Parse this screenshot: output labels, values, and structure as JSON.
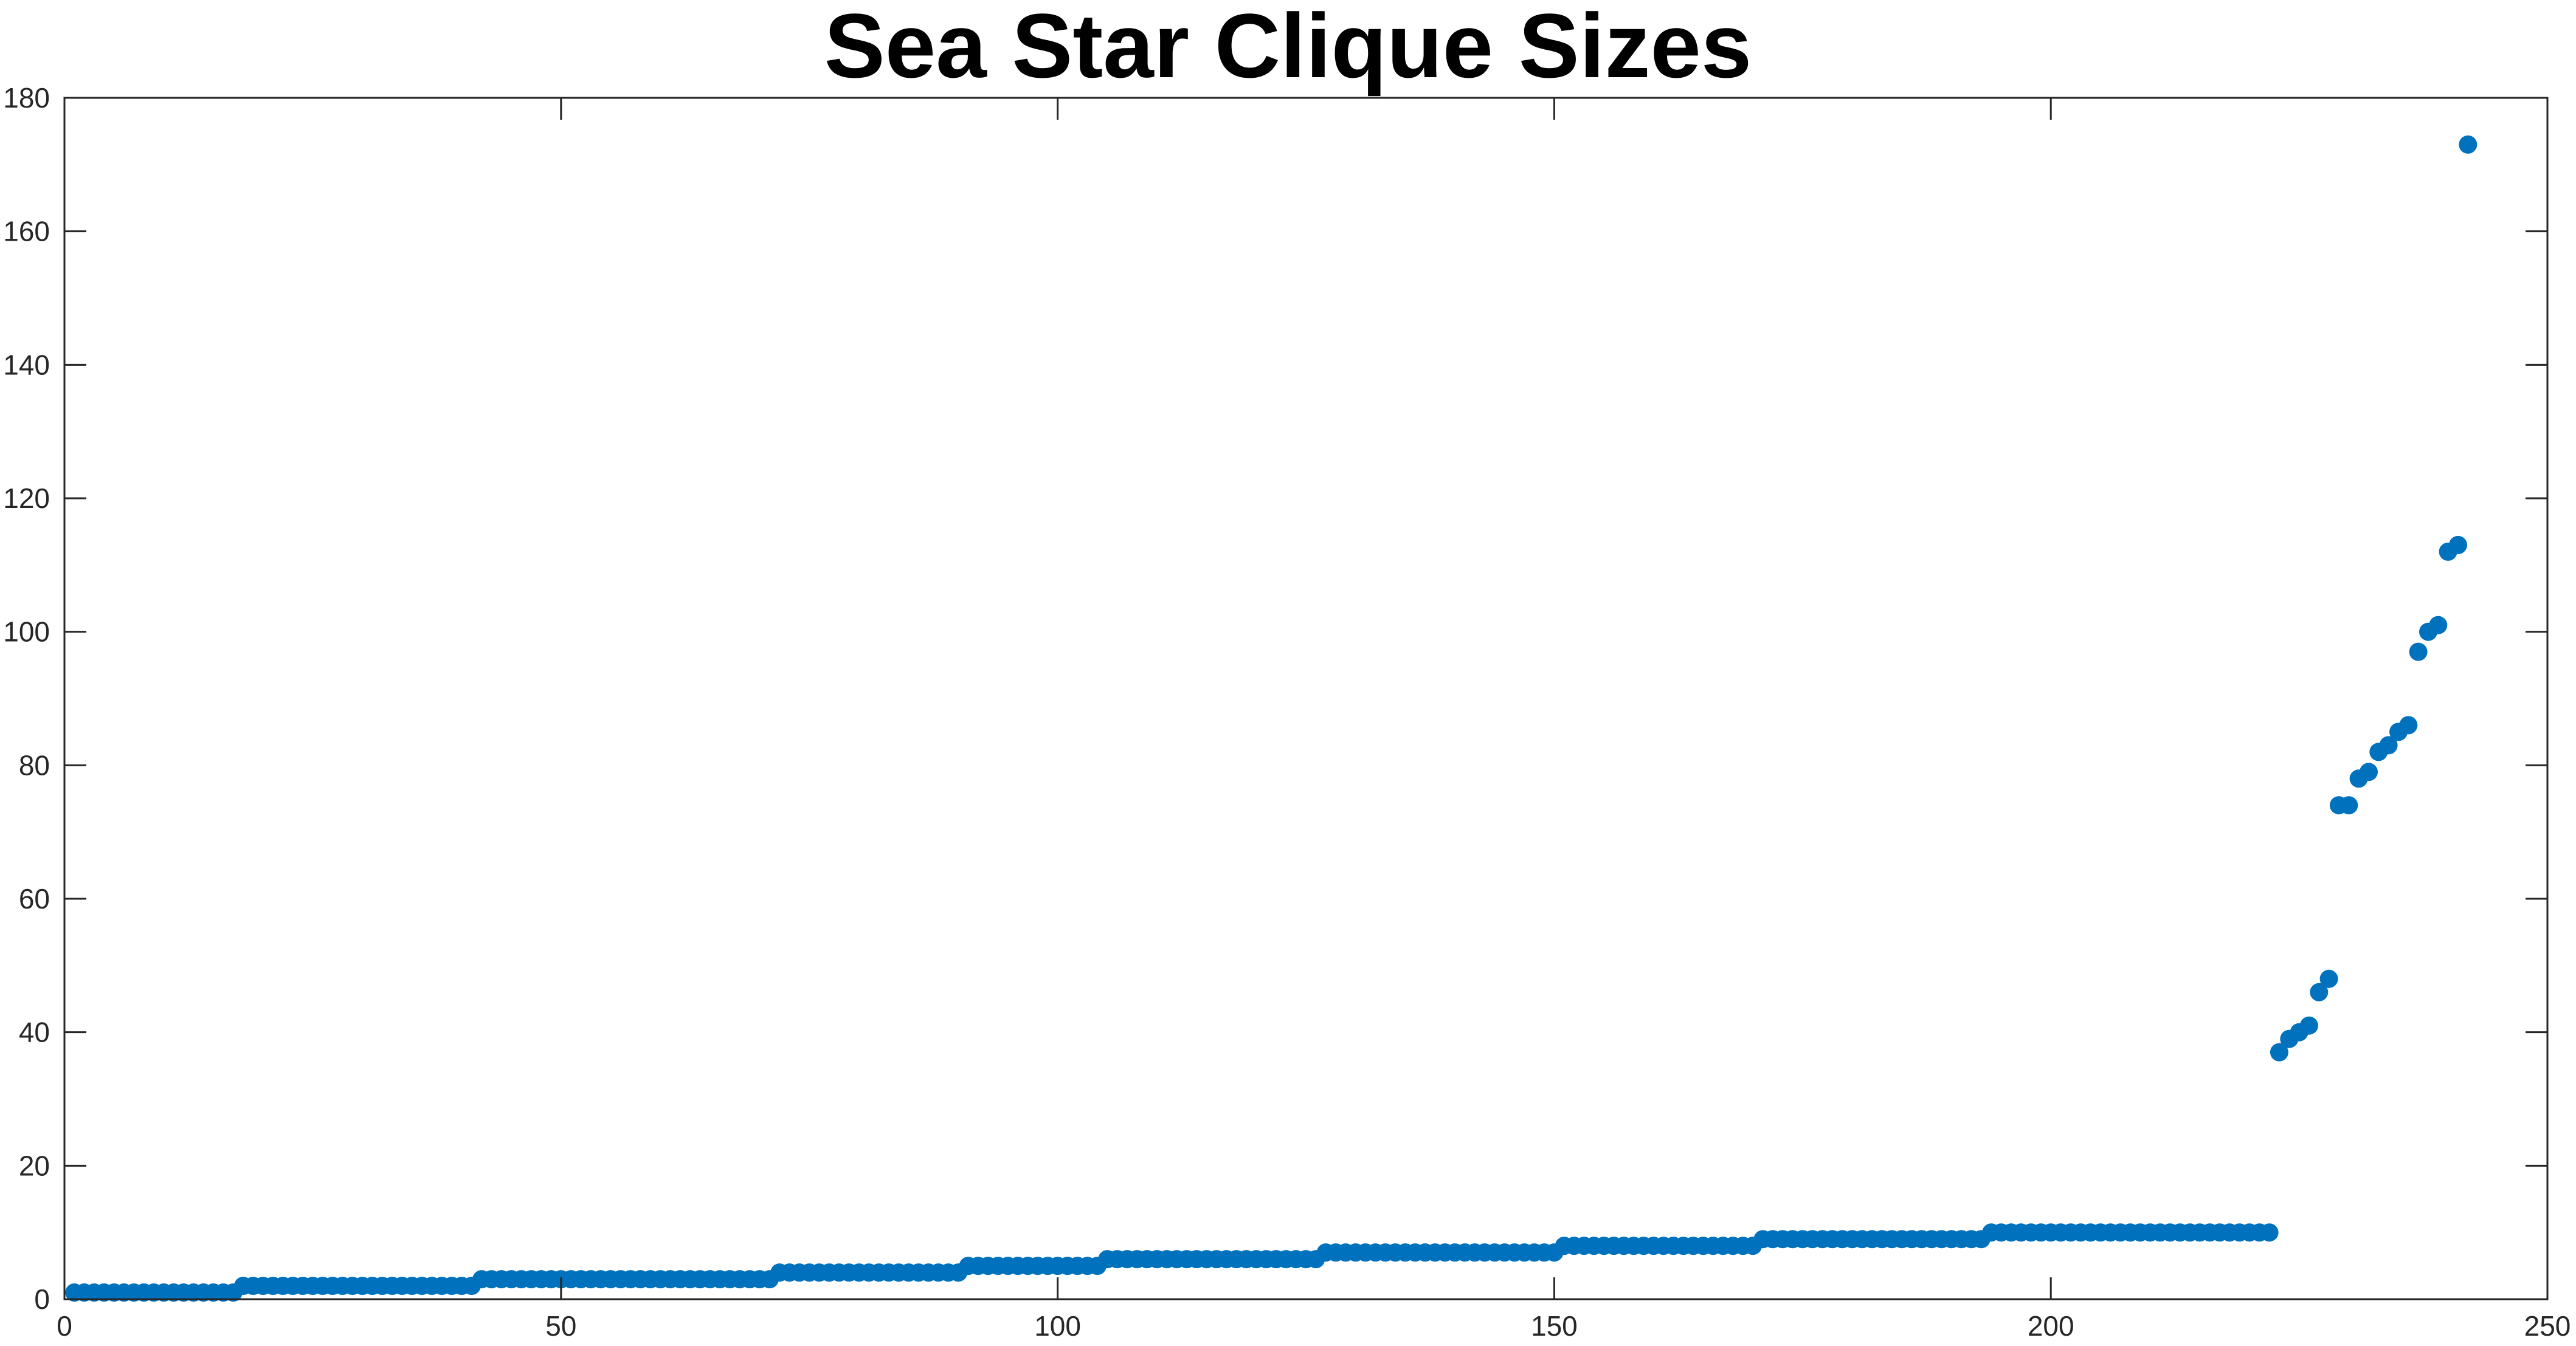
{
  "chart_data": {
    "type": "scatter",
    "title": "Sea Star Clique Sizes",
    "xlabel": "",
    "ylabel": "",
    "xlim": [
      0,
      250
    ],
    "ylim": [
      0,
      180
    ],
    "xticks": [
      0,
      50,
      100,
      150,
      200,
      250
    ],
    "yticks": [
      0,
      20,
      40,
      60,
      80,
      100,
      120,
      140,
      160,
      180
    ],
    "grid": false,
    "legend": "none",
    "marker_color": "#0072BD",
    "series": [
      {
        "name": "",
        "x": [
          1,
          2,
          3,
          4,
          5,
          6,
          7,
          8,
          9,
          10,
          11,
          12,
          13,
          14,
          15,
          16,
          17,
          18,
          19,
          20,
          21,
          22,
          23,
          24,
          25,
          26,
          27,
          28,
          29,
          30,
          31,
          32,
          33,
          34,
          35,
          36,
          37,
          38,
          39,
          40,
          41,
          42,
          43,
          44,
          45,
          46,
          47,
          48,
          49,
          50,
          51,
          52,
          53,
          54,
          55,
          56,
          57,
          58,
          59,
          60,
          61,
          62,
          63,
          64,
          65,
          66,
          67,
          68,
          69,
          70,
          71,
          72,
          73,
          74,
          75,
          76,
          77,
          78,
          79,
          80,
          81,
          82,
          83,
          84,
          85,
          86,
          87,
          88,
          89,
          90,
          91,
          92,
          93,
          94,
          95,
          96,
          97,
          98,
          99,
          100,
          101,
          102,
          103,
          104,
          105,
          106,
          107,
          108,
          109,
          110,
          111,
          112,
          113,
          114,
          115,
          116,
          117,
          118,
          119,
          120,
          121,
          122,
          123,
          124,
          125,
          126,
          127,
          128,
          129,
          130,
          131,
          132,
          133,
          134,
          135,
          136,
          137,
          138,
          139,
          140,
          141,
          142,
          143,
          144,
          145,
          146,
          147,
          148,
          149,
          150,
          151,
          152,
          153,
          154,
          155,
          156,
          157,
          158,
          159,
          160,
          161,
          162,
          163,
          164,
          165,
          166,
          167,
          168,
          169,
          170,
          171,
          172,
          173,
          174,
          175,
          176,
          177,
          178,
          179,
          180,
          181,
          182,
          183,
          184,
          185,
          186,
          187,
          188,
          189,
          190,
          191,
          192,
          193,
          194,
          195,
          196,
          197,
          198,
          199,
          200,
          201,
          202,
          203,
          204,
          205,
          206,
          207,
          208,
          209,
          210,
          211,
          212,
          213,
          214,
          215,
          216,
          217,
          218,
          219,
          220,
          221,
          222,
          223,
          224,
          225,
          226,
          227,
          228,
          229,
          230,
          231,
          232,
          233,
          234,
          235,
          236,
          237,
          238,
          239,
          240,
          241,
          242
        ],
        "y": [
          1,
          1,
          1,
          1,
          1,
          1,
          1,
          1,
          1,
          1,
          1,
          1,
          1,
          1,
          1,
          1,
          1,
          2,
          2,
          2,
          2,
          2,
          2,
          2,
          2,
          2,
          2,
          2,
          2,
          2,
          2,
          2,
          2,
          2,
          2,
          2,
          2,
          2,
          2,
          2,
          2,
          3,
          3,
          3,
          3,
          3,
          3,
          3,
          3,
          3,
          3,
          3,
          3,
          3,
          3,
          3,
          3,
          3,
          3,
          3,
          3,
          3,
          3,
          3,
          3,
          3,
          3,
          3,
          3,
          3,
          3,
          4,
          4,
          4,
          4,
          4,
          4,
          4,
          4,
          4,
          4,
          4,
          4,
          4,
          4,
          4,
          4,
          4,
          4,
          4,
          5,
          5,
          5,
          5,
          5,
          5,
          5,
          5,
          5,
          5,
          5,
          5,
          5,
          5,
          6,
          6,
          6,
          6,
          6,
          6,
          6,
          6,
          6,
          6,
          6,
          6,
          6,
          6,
          6,
          6,
          6,
          6,
          6,
          6,
          6,
          6,
          7,
          7,
          7,
          7,
          7,
          7,
          7,
          7,
          7,
          7,
          7,
          7,
          7,
          7,
          7,
          7,
          7,
          7,
          7,
          7,
          7,
          7,
          7,
          7,
          8,
          8,
          8,
          8,
          8,
          8,
          8,
          8,
          8,
          8,
          8,
          8,
          8,
          8,
          8,
          8,
          8,
          8,
          8,
          8,
          9,
          9,
          9,
          9,
          9,
          9,
          9,
          9,
          9,
          9,
          9,
          9,
          9,
          9,
          9,
          9,
          9,
          9,
          9,
          9,
          9,
          9,
          9,
          10,
          10,
          10,
          10,
          10,
          10,
          10,
          10,
          10,
          10,
          10,
          10,
          10,
          10,
          10,
          10,
          10,
          10,
          10,
          10,
          10,
          10,
          10,
          10,
          10,
          10,
          10,
          10,
          10,
          37,
          39,
          40,
          41,
          46,
          48,
          74,
          74,
          78,
          79,
          82,
          83,
          85,
          86,
          97,
          100,
          101,
          112,
          113,
          173
        ]
      }
    ]
  }
}
